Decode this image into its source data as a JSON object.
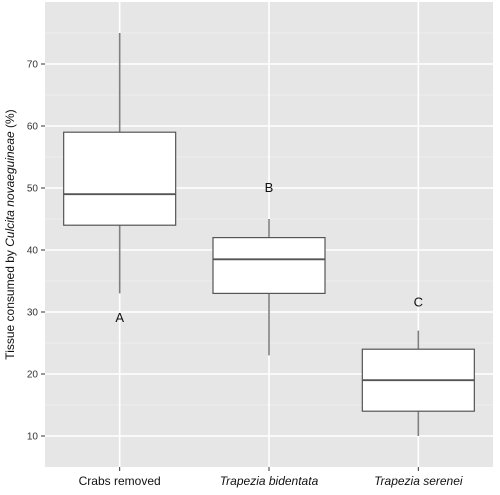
{
  "chart_data": {
    "type": "boxplot",
    "title": "",
    "ylabel_prefix": "Tissue consumed by ",
    "ylabel_species": "Culcita novaeguineae",
    "ylabel_suffix": " (%)",
    "ylim": [
      5,
      80
    ],
    "yticks": [
      10,
      20,
      30,
      40,
      50,
      60,
      70
    ],
    "grid": true,
    "colors": {
      "panel": "#e6e6e6",
      "grid_major": "#ffffff",
      "grid_minor": "#f2f2f2",
      "box_fill": "#ffffff",
      "box_stroke": "#555555",
      "whisker": "#808080"
    },
    "categories": [
      {
        "label": "Crabs removed",
        "italic": false,
        "min": 33,
        "q1": 44,
        "median": 49,
        "q3": 59,
        "max": 75,
        "letter": "A",
        "letter_y": 29
      },
      {
        "label": "Trapezia bidentata",
        "italic": true,
        "min": 23,
        "q1": 33,
        "median": 38.5,
        "q3": 42,
        "max": 45,
        "letter": "B",
        "letter_y": 50
      },
      {
        "label": "Trapezia serenei",
        "italic": true,
        "min": 10,
        "q1": 14,
        "median": 19,
        "q3": 24,
        "max": 27,
        "letter": "C",
        "letter_y": 31.5
      }
    ]
  }
}
